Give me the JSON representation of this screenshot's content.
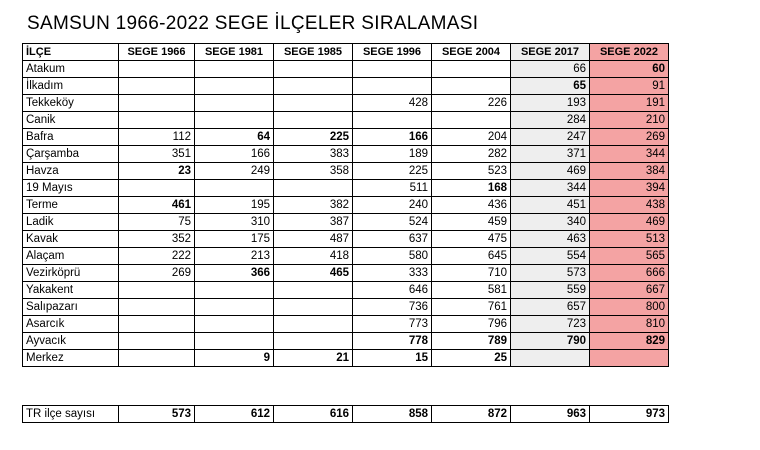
{
  "title": "SAMSUN 1966-2022 SEGE İLÇELER SIRALAMASI",
  "table": {
    "headers": [
      "İLÇE",
      "SEGE 1966",
      "SEGE 1981",
      "SEGE 1985",
      "SEGE 1996",
      "SEGE 2004",
      "SEGE 2017",
      "SEGE 2022"
    ],
    "rows": [
      {
        "name": "Atakum",
        "values": [
          "",
          "",
          "",
          "",
          "",
          "66",
          "60"
        ],
        "bold": [
          false,
          false,
          false,
          false,
          false,
          false,
          true
        ]
      },
      {
        "name": "İlkadım",
        "values": [
          "",
          "",
          "",
          "",
          "",
          "65",
          "91"
        ],
        "bold": [
          false,
          false,
          false,
          false,
          false,
          true,
          false
        ]
      },
      {
        "name": "Tekkeköy",
        "values": [
          "",
          "",
          "",
          "428",
          "226",
          "193",
          "191"
        ],
        "bold": [
          false,
          false,
          false,
          false,
          false,
          false,
          false
        ]
      },
      {
        "name": "Canik",
        "values": [
          "",
          "",
          "",
          "",
          "",
          "284",
          "210"
        ],
        "bold": [
          false,
          false,
          false,
          false,
          false,
          false,
          false
        ]
      },
      {
        "name": "Bafra",
        "values": [
          "112",
          "64",
          "225",
          "166",
          "204",
          "247",
          "269"
        ],
        "bold": [
          false,
          true,
          true,
          true,
          false,
          false,
          false
        ]
      },
      {
        "name": "Çarşamba",
        "values": [
          "351",
          "166",
          "383",
          "189",
          "282",
          "371",
          "344"
        ],
        "bold": [
          false,
          false,
          false,
          false,
          false,
          false,
          false
        ]
      },
      {
        "name": "Havza",
        "values": [
          "23",
          "249",
          "358",
          "225",
          "523",
          "469",
          "384"
        ],
        "bold": [
          true,
          false,
          false,
          false,
          false,
          false,
          false
        ]
      },
      {
        "name": "19 Mayıs",
        "values": [
          "",
          "",
          "",
          "511",
          "168",
          "344",
          "394"
        ],
        "bold": [
          false,
          false,
          false,
          false,
          true,
          false,
          false
        ]
      },
      {
        "name": "Terme",
        "values": [
          "461",
          "195",
          "382",
          "240",
          "436",
          "451",
          "438"
        ],
        "bold": [
          true,
          false,
          false,
          false,
          false,
          false,
          false
        ]
      },
      {
        "name": "Ladik",
        "values": [
          "75",
          "310",
          "387",
          "524",
          "459",
          "340",
          "469"
        ],
        "bold": [
          false,
          false,
          false,
          false,
          false,
          false,
          false
        ]
      },
      {
        "name": "Kavak",
        "values": [
          "352",
          "175",
          "487",
          "637",
          "475",
          "463",
          "513"
        ],
        "bold": [
          false,
          false,
          false,
          false,
          false,
          false,
          false
        ]
      },
      {
        "name": "Alaçam",
        "values": [
          "222",
          "213",
          "418",
          "580",
          "645",
          "554",
          "565"
        ],
        "bold": [
          false,
          false,
          false,
          false,
          false,
          false,
          false
        ]
      },
      {
        "name": "Vezirköprü",
        "values": [
          "269",
          "366",
          "465",
          "333",
          "710",
          "573",
          "666"
        ],
        "bold": [
          false,
          true,
          true,
          false,
          false,
          false,
          false
        ]
      },
      {
        "name": "Yakakent",
        "values": [
          "",
          "",
          "",
          "646",
          "581",
          "559",
          "667"
        ],
        "bold": [
          false,
          false,
          false,
          false,
          false,
          false,
          false
        ]
      },
      {
        "name": "Salıpazarı",
        "values": [
          "",
          "",
          "",
          "736",
          "761",
          "657",
          "800"
        ],
        "bold": [
          false,
          false,
          false,
          false,
          false,
          false,
          false
        ]
      },
      {
        "name": "Asarcık",
        "values": [
          "",
          "",
          "",
          "773",
          "796",
          "723",
          "810"
        ],
        "bold": [
          false,
          false,
          false,
          false,
          false,
          false,
          false
        ]
      },
      {
        "name": "Ayvacık",
        "values": [
          "",
          "",
          "",
          "778",
          "789",
          "790",
          "829"
        ],
        "bold": [
          false,
          false,
          false,
          true,
          true,
          true,
          true
        ]
      },
      {
        "name": "Merkez",
        "values": [
          "",
          "9",
          "21",
          "15",
          "25",
          "",
          ""
        ],
        "bold": [
          false,
          true,
          true,
          true,
          true,
          false,
          false
        ]
      }
    ],
    "footer": {
      "name": "TR ilçe sayısı",
      "values": [
        "573",
        "612",
        "616",
        "858",
        "872",
        "963",
        "973"
      ]
    }
  },
  "colors": {
    "sege2017_bg": "#eeeeee",
    "sege2022_bg": "#f4a3a3"
  }
}
